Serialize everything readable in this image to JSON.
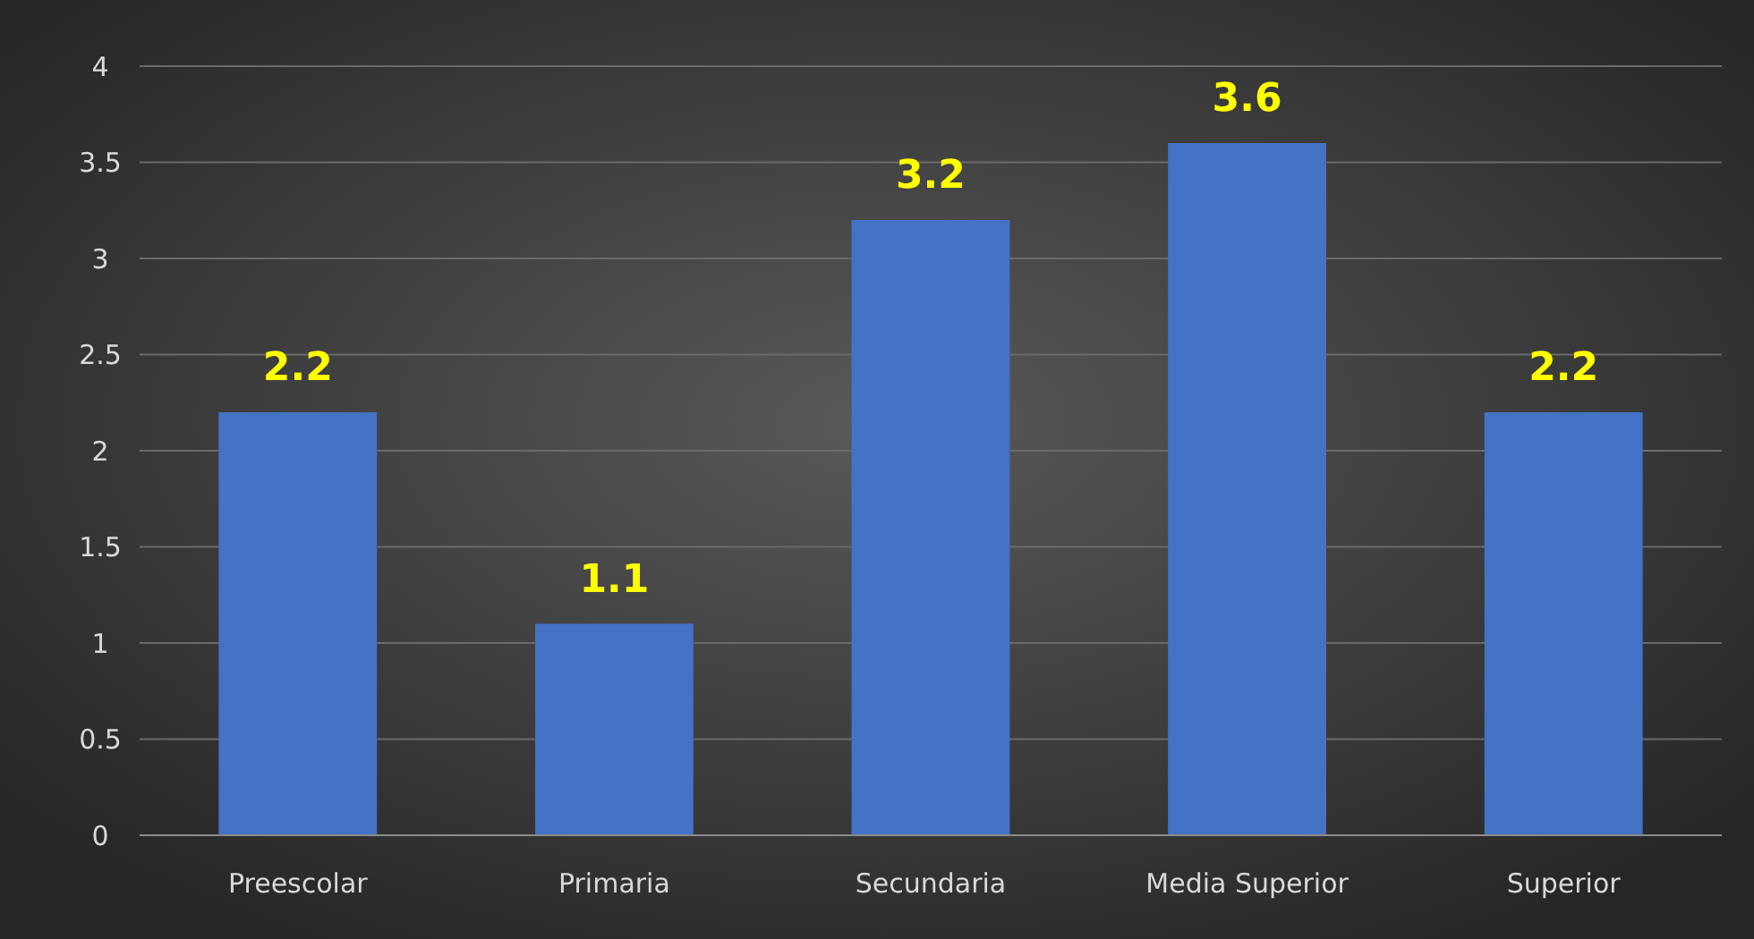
{
  "chart_data": {
    "type": "bar",
    "categories": [
      "Preescolar",
      "Primaria",
      "Secundaria",
      "Media Superior",
      "Superior"
    ],
    "values": [
      2.2,
      1.1,
      3.2,
      3.6,
      2.2
    ],
    "color": "#4472c4",
    "ylim": [
      0,
      4
    ],
    "yticks": [
      0,
      0.5,
      1,
      1.5,
      2,
      2.5,
      3,
      3.5,
      4
    ],
    "grid": "y",
    "data_labels": true
  }
}
